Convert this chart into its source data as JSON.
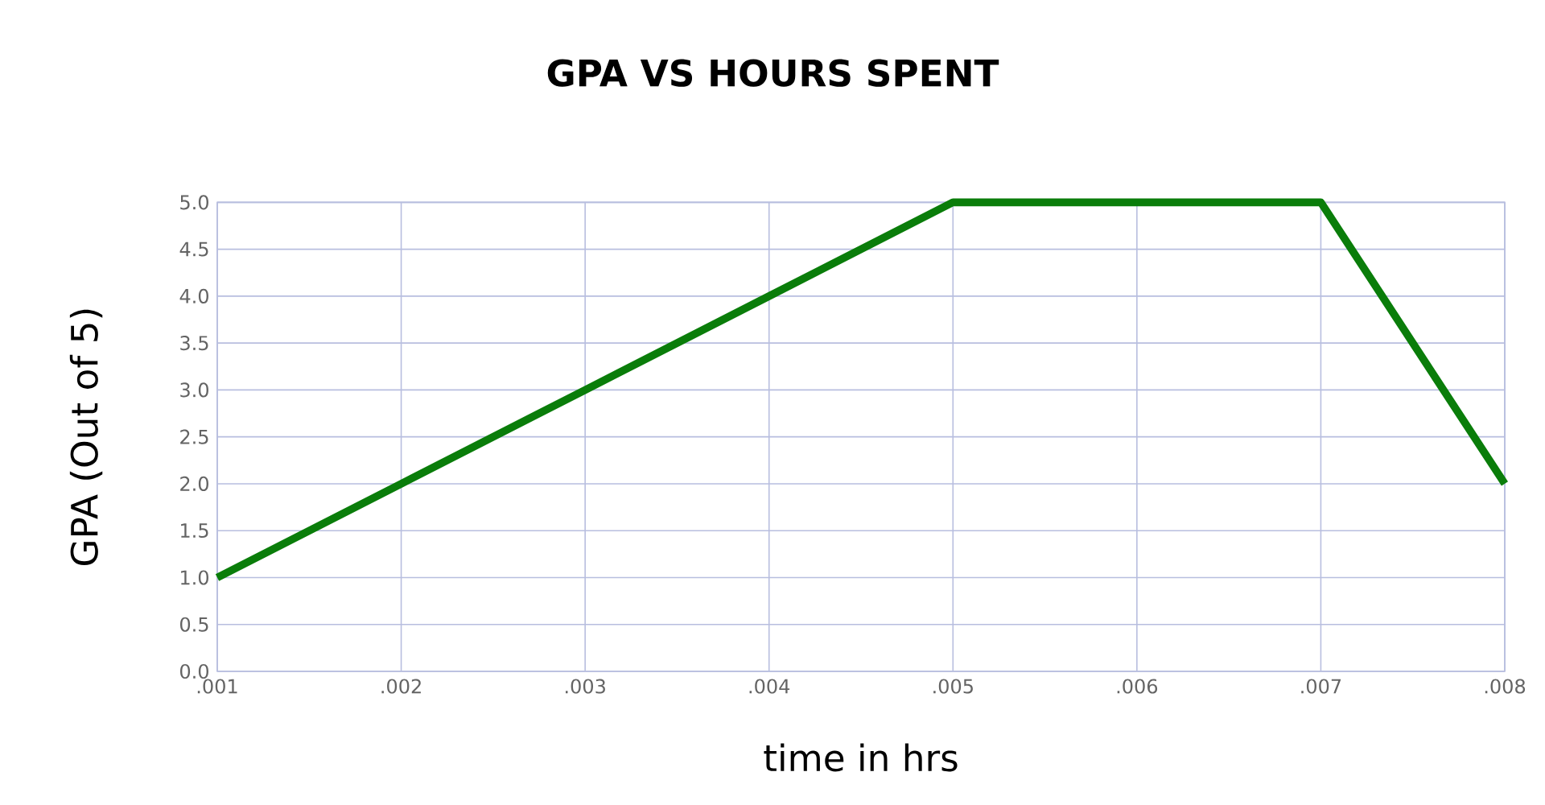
{
  "chart_data": {
    "type": "line",
    "title": "GPA VS HOURS SPENT",
    "xlabel": "time in hrs",
    "ylabel": "GPA (Out of 5)",
    "x": [
      0.001,
      0.002,
      0.003,
      0.004,
      0.005,
      0.006,
      0.007,
      0.008
    ],
    "series": [
      {
        "color": "#0a7d0a",
        "values": [
          1,
          2,
          3,
          4,
          5,
          5,
          5,
          2
        ]
      }
    ],
    "xlim": [
      0.001,
      0.008
    ],
    "ylim": [
      0,
      5
    ],
    "xticks": [
      {
        "value": 0.001,
        "label": ".001"
      },
      {
        "value": 0.002,
        "label": ".002"
      },
      {
        "value": 0.003,
        "label": ".003"
      },
      {
        "value": 0.004,
        "label": ".004"
      },
      {
        "value": 0.005,
        "label": ".005"
      },
      {
        "value": 0.006,
        "label": ".006"
      },
      {
        "value": 0.007,
        "label": ".007"
      },
      {
        "value": 0.008,
        "label": ".008"
      }
    ],
    "yticks": [
      {
        "value": 0,
        "label": "0.0"
      },
      {
        "value": 0.5,
        "label": "0.5"
      },
      {
        "value": 1,
        "label": "1.0"
      },
      {
        "value": 1.5,
        "label": "1.5"
      },
      {
        "value": 2,
        "label": "2.0"
      },
      {
        "value": 2.5,
        "label": "2.5"
      },
      {
        "value": 3,
        "label": "3.0"
      },
      {
        "value": 3.5,
        "label": "3.5"
      },
      {
        "value": 4,
        "label": "4.0"
      },
      {
        "value": 4.5,
        "label": "4.5"
      },
      {
        "value": 5,
        "label": "5.0"
      }
    ],
    "grid": true,
    "line_style": "solid"
  }
}
